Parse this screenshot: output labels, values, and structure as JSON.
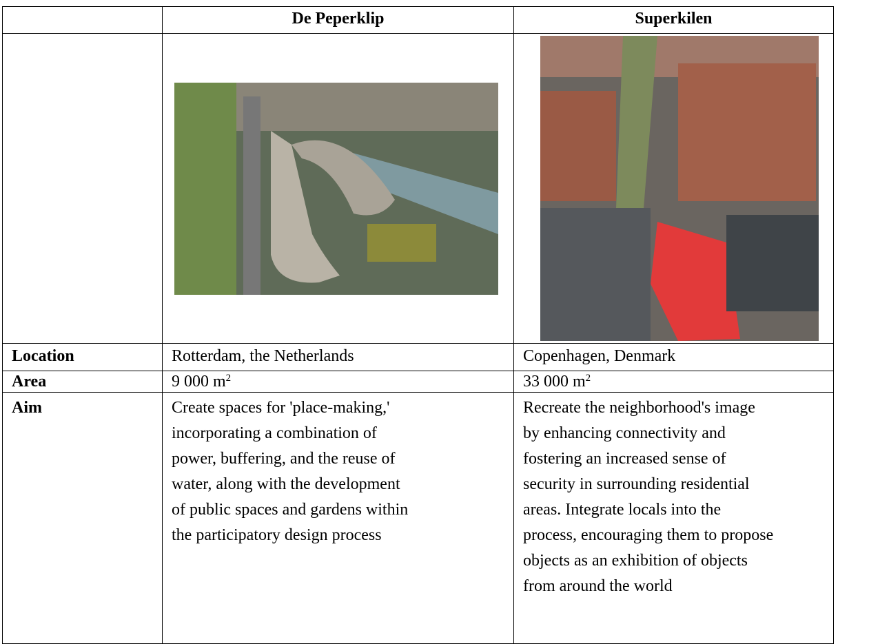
{
  "table": {
    "header": [
      "De Peperklip",
      "Superkilen"
    ],
    "rows": [
      {
        "label": "Location",
        "cells": [
          "Rotterdam, the Netherlands",
          "Copenhagen, Denmark"
        ]
      },
      {
        "label": "Area",
        "cells": [
          {
            "text": "9 000 m",
            "sup": "2"
          },
          {
            "text": "33 000 m",
            "sup": "2"
          }
        ]
      },
      {
        "label": "Aim",
        "cells": [
          [
            "Create spaces for 'place-making,'",
            "incorporating a combination of",
            "power, buffering, and the reuse of",
            "water, along with the development",
            "of public spaces and gardens within",
            "the participatory design process"
          ],
          [
            "Recreate the neighborhood's image",
            "by enhancing connectivity and",
            "fostering an increased sense of",
            "security in surrounding residential",
            "areas. Integrate locals into the",
            "process, encouraging them to propose",
            "objects as an exhibition of objects",
            "from around the world"
          ]
        ]
      }
    ]
  }
}
